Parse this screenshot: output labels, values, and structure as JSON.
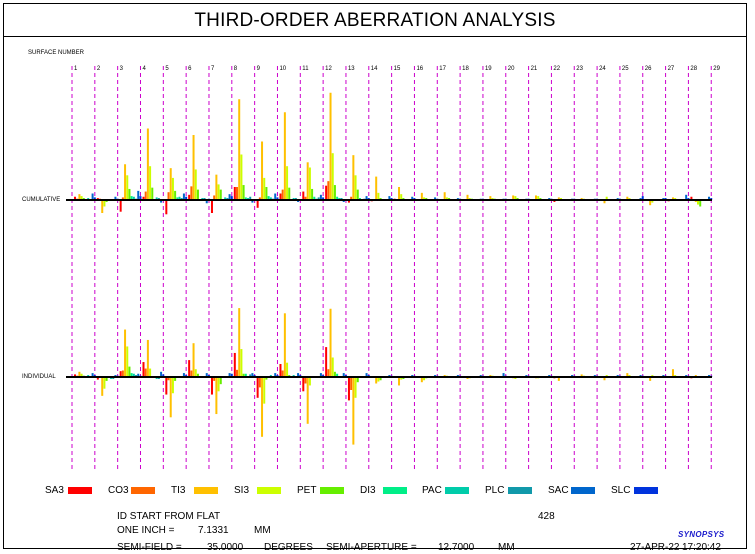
{
  "title": "THIRD-ORDER ABERRATION ANALYSIS",
  "labels": {
    "surface_number": "SURFACE NUMBER",
    "cumulative": "CUMULATIVE",
    "individual": "INDIVIDUAL"
  },
  "legend": [
    {
      "name": "SA3",
      "color": "#ff0000"
    },
    {
      "name": "CO3",
      "color": "#ff6600"
    },
    {
      "name": "TI3",
      "color": "#ffc000"
    },
    {
      "name": "SI3",
      "color": "#ccff00"
    },
    {
      "name": "PET",
      "color": "#66ee00"
    },
    {
      "name": "DI3",
      "color": "#00ee88"
    },
    {
      "name": "PAC",
      "color": "#00ccaa"
    },
    {
      "name": "PLC",
      "color": "#1199aa"
    },
    {
      "name": "SAC",
      "color": "#0066cc"
    },
    {
      "name": "SLC",
      "color": "#0033dd"
    }
  ],
  "info": {
    "id_label": "ID START FROM FLAT",
    "id_value": "428",
    "one_inch_label": "ONE INCH =",
    "one_inch_value": "7.1331",
    "one_inch_unit": "MM",
    "semi_field_label": "SEMI-FIELD =",
    "semi_field_value": "35.0000",
    "semi_field_unit": "DEGREES",
    "semi_aperture_label": "SEMI-APERTURE =",
    "semi_aperture_value": "12.7000",
    "semi_aperture_unit": "MM",
    "date": "27-APR-22",
    "time": "17:20:42",
    "logo": "SYNOPSYS"
  },
  "chart_data": {
    "type": "bar",
    "categories": [
      "1",
      "2",
      "3",
      "4",
      "5",
      "6",
      "7",
      "8",
      "9",
      "10",
      "11",
      "12",
      "13",
      "14",
      "15",
      "16",
      "17",
      "18",
      "19",
      "20",
      "21",
      "22",
      "23",
      "24",
      "25",
      "26",
      "27",
      "28",
      "29"
    ],
    "series_order": [
      "SA3",
      "CO3",
      "TI3",
      "SI3",
      "PET",
      "DI3",
      "PAC",
      "PLC",
      "SAC",
      "SLC"
    ],
    "cumulative": [
      [
        0.5,
        0.2,
        0.9,
        0.6,
        0.3,
        0.0,
        0.3,
        0.0,
        1.0,
        0.4
      ],
      [
        0.3,
        0.2,
        -2.0,
        -1.0,
        -0.3,
        0.0,
        0.0,
        0.0,
        0.5,
        0.2
      ],
      [
        -1.8,
        0.4,
        5.5,
        3.8,
        1.7,
        0.6,
        0.5,
        0.2,
        1.4,
        0.6
      ],
      [
        0.5,
        1.3,
        11.0,
        5.2,
        1.9,
        0.0,
        0.4,
        0.3,
        -0.4,
        0.1
      ],
      [
        -2.2,
        1.2,
        4.9,
        3.4,
        1.4,
        0.4,
        0.5,
        0.3,
        1.0,
        0.5
      ],
      [
        0.8,
        2.1,
        10.0,
        4.7,
        1.6,
        0.0,
        0.3,
        0.3,
        -0.5,
        0.2
      ],
      [
        -2.0,
        0.7,
        3.9,
        2.4,
        1.6,
        0.0,
        0.4,
        0.3,
        0.9,
        0.6
      ],
      [
        2.0,
        2.0,
        15.5,
        7.0,
        2.3,
        0.4,
        0.3,
        0.5,
        -0.4,
        0.0
      ],
      [
        -1.2,
        0.4,
        9.0,
        3.4,
        2.0,
        0.6,
        0.4,
        0.2,
        1.0,
        0.4
      ],
      [
        1.0,
        1.6,
        13.5,
        5.2,
        1.9,
        0.0,
        0.3,
        0.3,
        -0.3,
        0.0
      ],
      [
        1.3,
        0.5,
        5.8,
        5.0,
        1.7,
        0.5,
        0.2,
        0.4,
        0.8,
        0.4
      ],
      [
        2.2,
        2.9,
        16.5,
        7.2,
        2.3,
        0.5,
        0.3,
        0.3,
        -0.3,
        0.0
      ],
      [
        -0.4,
        0.5,
        6.9,
        3.8,
        1.6,
        0.3,
        0.0,
        0.2,
        0.6,
        0.3
      ],
      [
        -0.2,
        0.0,
        3.6,
        1.1,
        0.3,
        0.0,
        0.0,
        0.0,
        0.6,
        0.3
      ],
      [
        0.2,
        0.0,
        2.0,
        0.9,
        0.3,
        0.0,
        0.0,
        0.0,
        0.5,
        0.3
      ],
      [
        0.0,
        0.0,
        1.1,
        0.4,
        0.3,
        0.0,
        0.0,
        0.0,
        0.4,
        0.2
      ],
      [
        0.0,
        0.0,
        1.2,
        0.4,
        0.3,
        0.0,
        0.0,
        0.0,
        0.3,
        0.2
      ],
      [
        0.0,
        0.0,
        0.8,
        0.3,
        0.2,
        0.0,
        0.0,
        0.0,
        0.2,
        0.2
      ],
      [
        0.0,
        0.0,
        0.6,
        0.3,
        0.2,
        0.0,
        0.0,
        0.0,
        0.2,
        0.2
      ],
      [
        0.0,
        0.0,
        0.7,
        0.6,
        0.3,
        0.0,
        0.0,
        0.0,
        0.2,
        0.2
      ],
      [
        0.0,
        0.0,
        0.7,
        0.6,
        0.3,
        0.0,
        0.0,
        0.0,
        0.3,
        0.2
      ],
      [
        -0.3,
        0.0,
        0.4,
        0.3,
        0.0,
        0.0,
        0.0,
        0.0,
        0.2,
        0.2
      ],
      [
        0.0,
        0.0,
        0.3,
        0.2,
        0.0,
        0.0,
        0.0,
        0.0,
        0.2,
        0.2
      ],
      [
        0.0,
        0.0,
        -0.5,
        0.5,
        0.0,
        0.0,
        0.0,
        0.0,
        0.3,
        0.2
      ],
      [
        0.0,
        0.0,
        0.5,
        0.3,
        0.0,
        0.0,
        0.0,
        0.0,
        0.3,
        0.6
      ],
      [
        0.0,
        0.0,
        -0.8,
        -0.4,
        0.0,
        0.0,
        0.0,
        0.0,
        0.3,
        0.3
      ],
      [
        -0.2,
        0.0,
        0.4,
        0.3,
        0.0,
        0.0,
        0.0,
        0.0,
        0.8,
        0.3
      ],
      [
        0.5,
        0.0,
        -0.3,
        -0.7,
        -1.0,
        0.0,
        0.0,
        0.0,
        0.5,
        0.3
      ],
      [
        0.0,
        0.0,
        0.0,
        0.0,
        0.0,
        0.0,
        0.0,
        0.0,
        0.0,
        0.0
      ]
    ],
    "individual": [
      [
        0.4,
        0.2,
        0.8,
        0.5,
        0.2,
        0.0,
        0.3,
        0.0,
        0.6,
        0.3
      ],
      [
        -0.4,
        0.0,
        -2.9,
        -1.8,
        -0.6,
        0.0,
        -0.3,
        -0.3,
        0.3,
        0.2
      ],
      [
        0.9,
        1.0,
        7.3,
        4.7,
        1.6,
        0.6,
        0.5,
        0.3,
        0.5,
        0.2
      ],
      [
        2.3,
        1.3,
        5.7,
        1.3,
        0.0,
        0.0,
        -0.3,
        -0.3,
        0.8,
        0.4
      ],
      [
        -2.7,
        -0.5,
        -6.2,
        -2.5,
        -0.6,
        0.0,
        0.0,
        0.0,
        0.6,
        0.3
      ],
      [
        2.6,
        1.0,
        5.2,
        1.2,
        0.5,
        0.0,
        0.0,
        0.0,
        0.6,
        0.3
      ],
      [
        -2.7,
        -0.6,
        -5.7,
        -2.2,
        -1.1,
        0.0,
        0.0,
        0.0,
        0.6,
        0.5
      ],
      [
        3.7,
        1.1,
        10.6,
        4.3,
        0.5,
        0.5,
        0.0,
        0.4,
        0.6,
        0.3
      ],
      [
        -3.2,
        -1.6,
        -9.2,
        -4.1,
        -0.4,
        0.0,
        0.3,
        0.0,
        0.6,
        0.3
      ],
      [
        2.0,
        1.0,
        9.8,
        2.2,
        0.3,
        0.0,
        0.3,
        0.0,
        0.6,
        0.3
      ],
      [
        -2.2,
        -1.0,
        -7.2,
        -1.3,
        0.0,
        0.0,
        0.0,
        0.0,
        0.6,
        0.3
      ],
      [
        4.6,
        1.2,
        10.5,
        3.0,
        0.8,
        0.5,
        0.0,
        0.0,
        0.6,
        0.3
      ],
      [
        -3.6,
        -2.0,
        -10.4,
        -3.2,
        -0.8,
        0.0,
        0.0,
        0.0,
        0.6,
        0.3
      ],
      [
        0.0,
        0.0,
        -1.0,
        -0.7,
        -0.5,
        0.0,
        0.0,
        0.0,
        0.3,
        0.2
      ],
      [
        0.0,
        0.0,
        -1.3,
        -0.4,
        -0.3,
        0.0,
        0.0,
        0.0,
        0.3,
        0.2
      ],
      [
        0.0,
        0.0,
        -0.8,
        -0.5,
        -0.2,
        0.0,
        0.0,
        0.0,
        0.3,
        0.2
      ],
      [
        0.0,
        0.0,
        0.3,
        0.2,
        0.0,
        0.0,
        0.0,
        0.0,
        0.3,
        0.2
      ],
      [
        0.0,
        0.0,
        -0.3,
        -0.2,
        0.0,
        0.0,
        0.0,
        0.0,
        0.3,
        0.2
      ],
      [
        0.0,
        0.0,
        0.3,
        0.2,
        0.0,
        0.0,
        0.0,
        0.0,
        0.6,
        0.2
      ],
      [
        0.0,
        0.0,
        -0.2,
        -0.3,
        0.0,
        0.0,
        0.0,
        0.0,
        0.3,
        0.2
      ],
      [
        0.0,
        0.0,
        -0.2,
        -0.2,
        0.0,
        0.0,
        0.0,
        0.0,
        0.3,
        0.2
      ],
      [
        -0.2,
        0.0,
        -0.6,
        0.0,
        0.0,
        0.0,
        0.0,
        0.0,
        0.3,
        0.2
      ],
      [
        0.0,
        0.0,
        0.4,
        0.2,
        0.0,
        0.0,
        0.0,
        0.0,
        0.3,
        0.2
      ],
      [
        0.0,
        0.0,
        -0.5,
        0.3,
        0.0,
        0.0,
        0.0,
        0.0,
        0.3,
        0.2
      ],
      [
        0.0,
        0.0,
        0.6,
        0.3,
        0.0,
        0.0,
        0.0,
        0.0,
        0.3,
        0.2
      ],
      [
        0.0,
        0.0,
        -0.6,
        0.3,
        0.0,
        0.0,
        0.0,
        0.0,
        0.3,
        0.2
      ],
      [
        0.0,
        0.0,
        1.2,
        0.3,
        0.0,
        0.0,
        0.0,
        0.0,
        0.3,
        0.2
      ],
      [
        -0.2,
        0.0,
        0.3,
        0.0,
        0.0,
        0.0,
        0.0,
        0.0,
        0.3,
        0.2
      ],
      [
        0.0,
        0.0,
        0.0,
        0.0,
        0.0,
        0.0,
        0.0,
        0.0,
        0.0,
        0.0
      ]
    ]
  }
}
